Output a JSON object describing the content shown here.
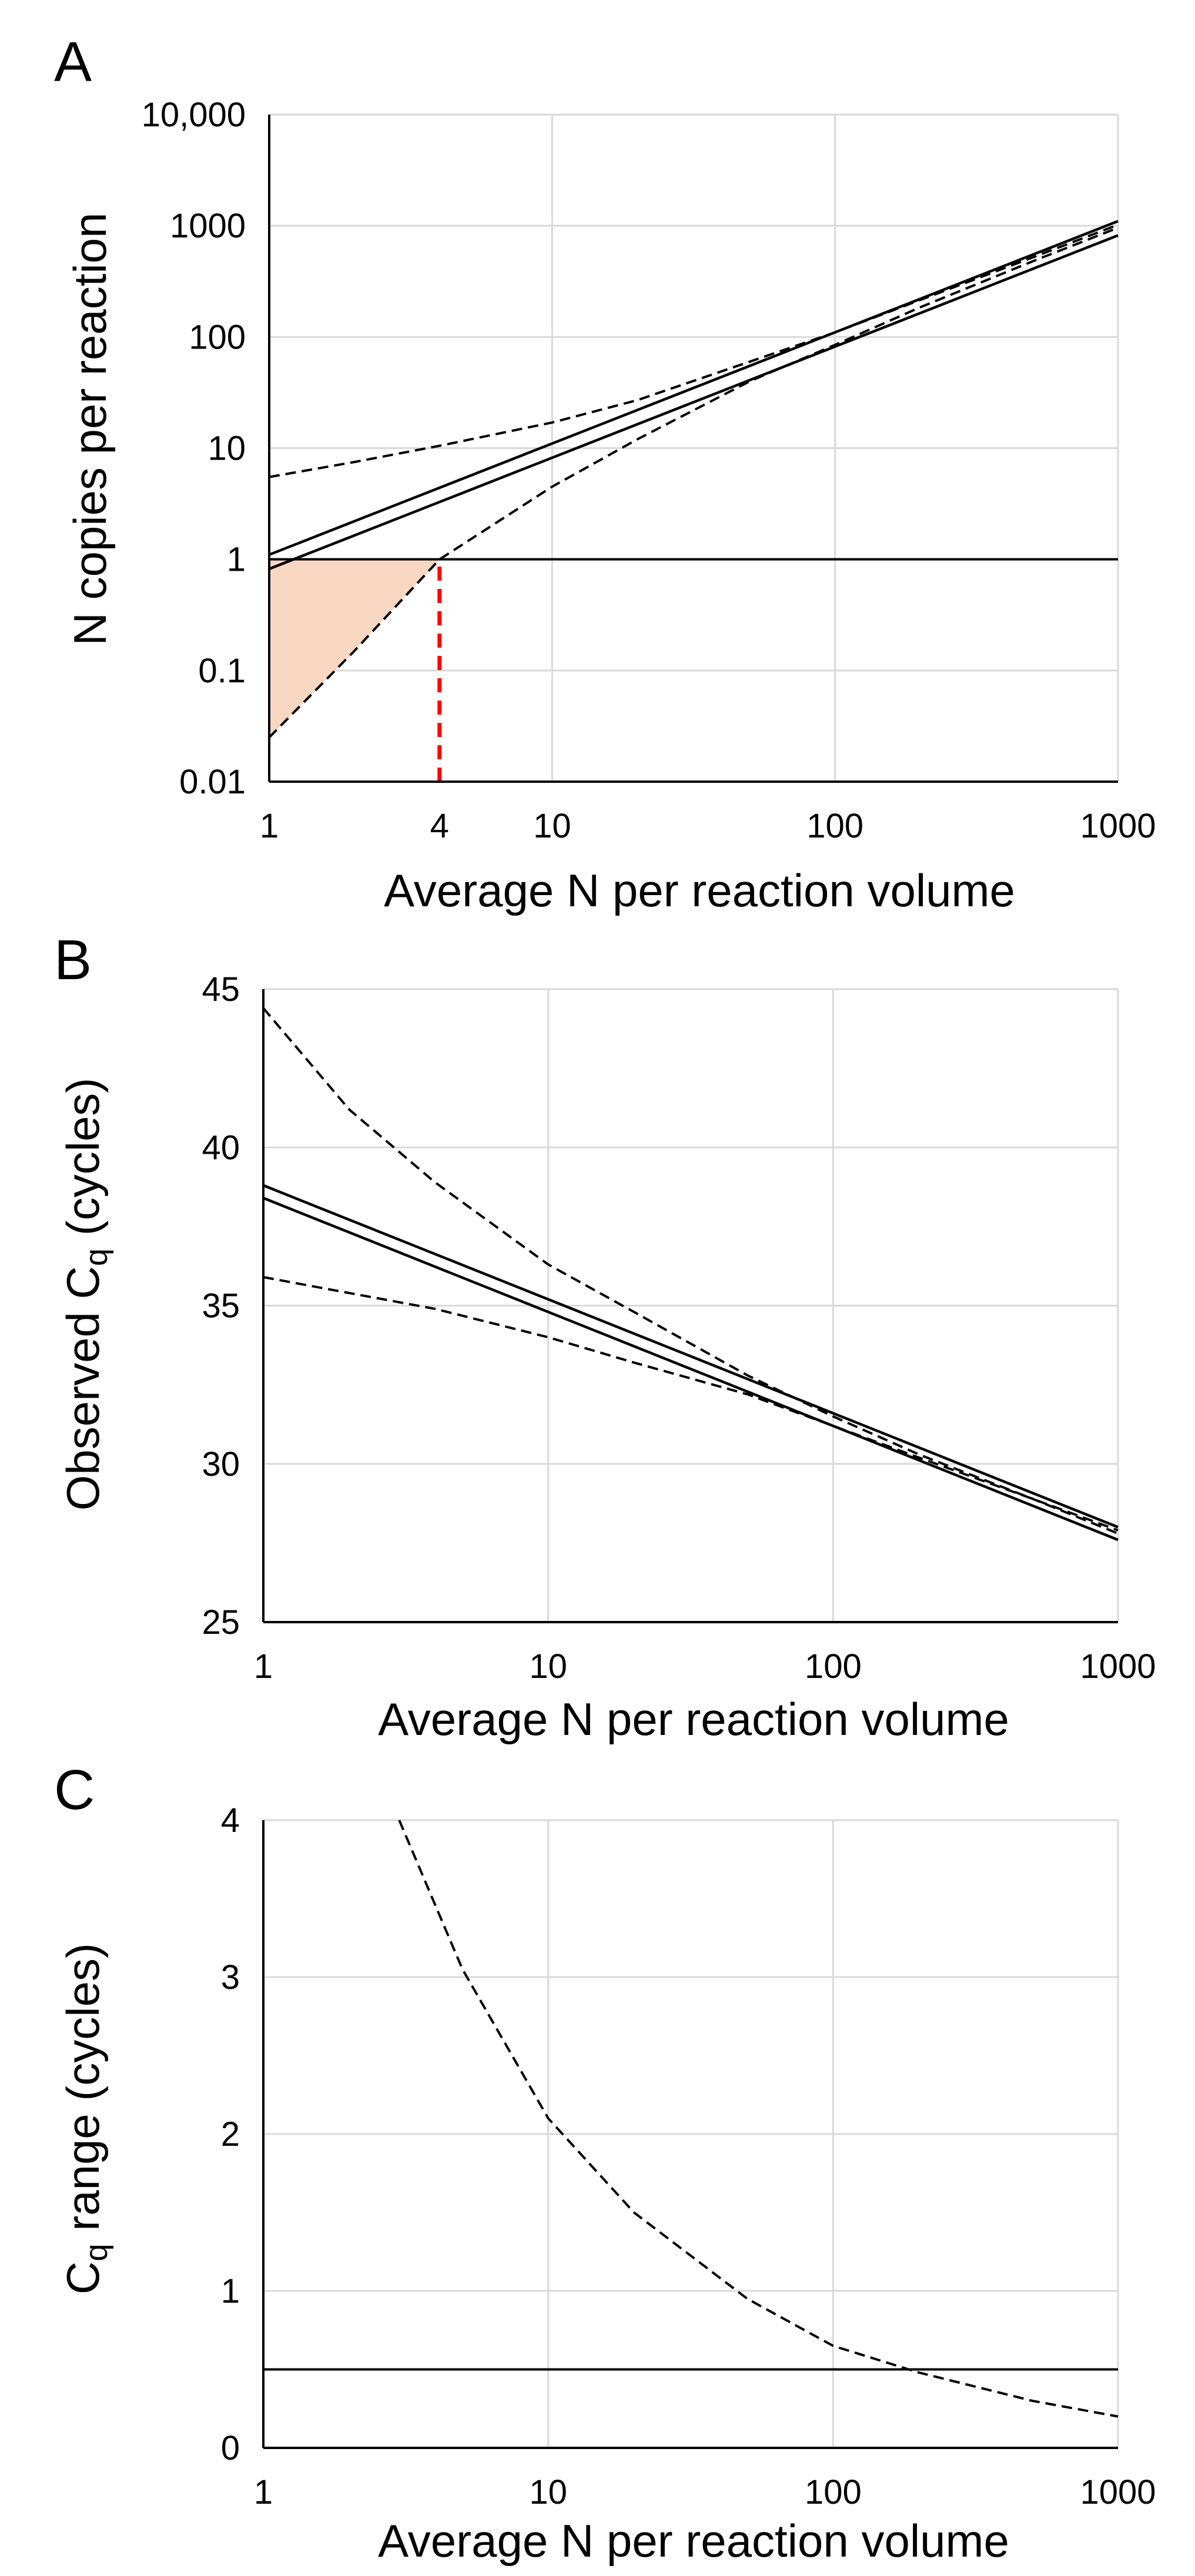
{
  "chart_data": [
    {
      "panel_label": "A",
      "type": "line",
      "xscale": "log",
      "yscale": "log",
      "xlim": [
        1,
        1000
      ],
      "ylim": [
        0.01,
        10000
      ],
      "xlabel": "Average N per reaction volume",
      "ylabel": "N copies per reaction",
      "xticks": [
        {
          "value": 1,
          "label": "1"
        },
        {
          "value": 4,
          "label": "4",
          "color": "#ff0000"
        },
        {
          "value": 10,
          "label": "10"
        },
        {
          "value": 100,
          "label": "100"
        },
        {
          "value": 1000,
          "label": "1000"
        }
      ],
      "yticks": [
        {
          "value": 0.01,
          "label": "0.01"
        },
        {
          "value": 0.1,
          "label": "0.1"
        },
        {
          "value": 1,
          "label": "1"
        },
        {
          "value": 10,
          "label": "10"
        },
        {
          "value": 100,
          "label": "100"
        },
        {
          "value": 1000,
          "label": "1000"
        },
        {
          "value": 10000,
          "label": "10,000"
        }
      ],
      "series": [
        {
          "name": "upper solid",
          "style": "solid",
          "x": [
            1,
            1000
          ],
          "y": [
            1.1,
            1100
          ]
        },
        {
          "name": "lower solid",
          "style": "solid",
          "x": [
            1,
            1000
          ],
          "y": [
            0.82,
            820
          ]
        },
        {
          "name": "upper dashed",
          "style": "dashed",
          "x": [
            1,
            2,
            4,
            10,
            20,
            50,
            100,
            200,
            500,
            1000
          ],
          "y": [
            5.5,
            7.5,
            10.5,
            17,
            27,
            60,
            110,
            215,
            520,
            1020
          ]
        },
        {
          "name": "lower dashed",
          "style": "dashed",
          "x": [
            1,
            2,
            4,
            10,
            20,
            50,
            100,
            200,
            500,
            1000
          ],
          "y": [
            0.025,
            0.15,
            1,
            4.5,
            12,
            40,
            85,
            185,
            480,
            960
          ]
        }
      ],
      "hline": {
        "y": 1,
        "style": "solid"
      },
      "vline": {
        "x": 4,
        "y_from": 0.01,
        "y_to": 1,
        "color": "#ff0000",
        "style": "dashed"
      },
      "shaded_region": {
        "color": "#f8d7c2"
      }
    },
    {
      "panel_label": "B",
      "type": "line",
      "xscale": "log",
      "yscale": "linear",
      "xlim": [
        1,
        1000
      ],
      "ylim": [
        25,
        45
      ],
      "xlabel": "Average N per reaction volume",
      "ylabel": "Observed C",
      "ylabel_sub": "q",
      "ylabel_suffix": " (cycles)",
      "xticks": [
        {
          "value": 1,
          "label": "1"
        },
        {
          "value": 10,
          "label": "10"
        },
        {
          "value": 100,
          "label": "100"
        },
        {
          "value": 1000,
          "label": "1000"
        }
      ],
      "yticks": [
        {
          "value": 25,
          "label": "25"
        },
        {
          "value": 30,
          "label": "30"
        },
        {
          "value": 35,
          "label": "35"
        },
        {
          "value": 40,
          "label": "40"
        },
        {
          "value": 45,
          "label": "45"
        }
      ],
      "series": [
        {
          "name": "upper solid",
          "style": "solid",
          "x": [
            1,
            1000
          ],
          "y": [
            38.8,
            28.0
          ]
        },
        {
          "name": "lower solid",
          "style": "solid",
          "x": [
            1,
            1000
          ],
          "y": [
            38.4,
            27.6
          ]
        },
        {
          "name": "upper dashed",
          "style": "dashed",
          "x": [
            1,
            2,
            4,
            10,
            20,
            50,
            100,
            200,
            500,
            1000
          ],
          "y": [
            44.4,
            41.2,
            38.9,
            36.3,
            34.8,
            32.8,
            31.5,
            30.3,
            28.9,
            27.8
          ]
        },
        {
          "name": "lower dashed",
          "style": "dashed",
          "x": [
            1,
            2,
            4,
            10,
            20,
            50,
            100,
            200,
            500,
            1000
          ],
          "y": [
            35.9,
            35.4,
            34.9,
            34.0,
            33.2,
            32.2,
            31.2,
            30.2,
            28.9,
            27.9
          ]
        }
      ]
    },
    {
      "panel_label": "C",
      "type": "line",
      "xscale": "log",
      "yscale": "linear",
      "xlim": [
        1,
        1000
      ],
      "ylim": [
        0,
        4
      ],
      "xlabel": "Average N per reaction volume",
      "ylabel": "C",
      "ylabel_sub": "q",
      "ylabel_suffix": " range (cycles)",
      "xticks": [
        {
          "value": 1,
          "label": "1"
        },
        {
          "value": 10,
          "label": "10"
        },
        {
          "value": 100,
          "label": "100"
        },
        {
          "value": 1000,
          "label": "1000"
        }
      ],
      "yticks": [
        {
          "value": 0,
          "label": "0"
        },
        {
          "value": 1,
          "label": "1"
        },
        {
          "value": 2,
          "label": "2"
        },
        {
          "value": 3,
          "label": "3"
        },
        {
          "value": 4,
          "label": "4"
        }
      ],
      "series": [
        {
          "name": "Cq range",
          "style": "dashed",
          "x": [
            3,
            5,
            10,
            20,
            50,
            100,
            200,
            500,
            1000
          ],
          "y": [
            4.0,
            3.05,
            2.1,
            1.5,
            0.95,
            0.65,
            0.48,
            0.3,
            0.2
          ]
        }
      ],
      "hline": {
        "y": 0.5,
        "style": "solid"
      }
    }
  ]
}
